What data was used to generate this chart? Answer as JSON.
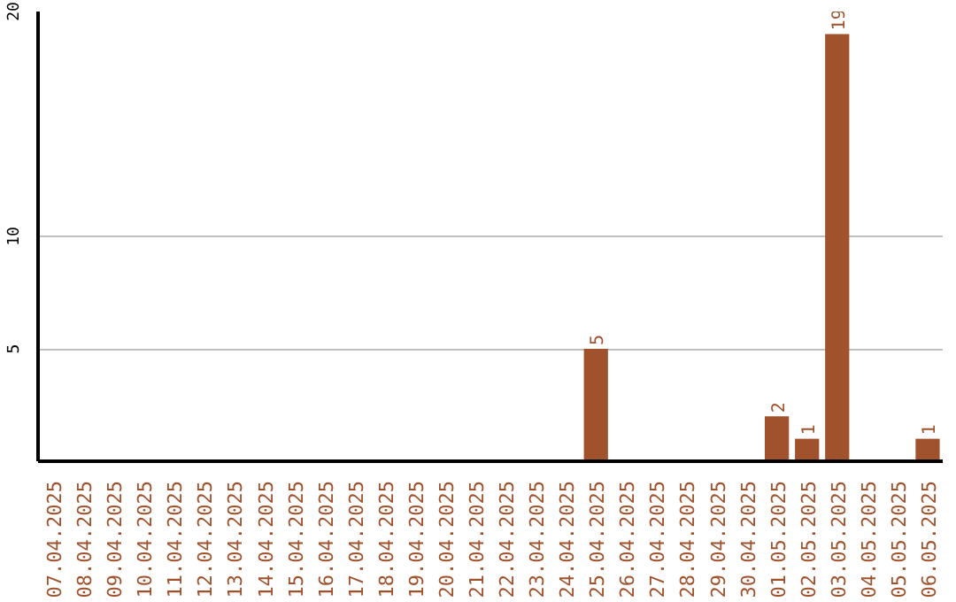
{
  "chart_data": {
    "type": "bar",
    "categories": [
      "07.04.2025",
      "08.04.2025",
      "09.04.2025",
      "10.04.2025",
      "11.04.2025",
      "12.04.2025",
      "13.04.2025",
      "14.04.2025",
      "15.04.2025",
      "16.04.2025",
      "17.04.2025",
      "18.04.2025",
      "19.04.2025",
      "20.04.2025",
      "21.04.2025",
      "22.04.2025",
      "23.04.2025",
      "24.04.2025",
      "25.04.2025",
      "26.04.2025",
      "27.04.2025",
      "28.04.2025",
      "29.04.2025",
      "30.04.2025",
      "01.05.2025",
      "02.05.2025",
      "03.05.2025",
      "04.05.2025",
      "05.05.2025",
      "06.05.2025"
    ],
    "values": [
      0,
      0,
      0,
      0,
      0,
      0,
      0,
      0,
      0,
      0,
      0,
      0,
      0,
      0,
      0,
      0,
      0,
      0,
      5,
      0,
      0,
      0,
      0,
      0,
      2,
      1,
      19,
      0,
      0,
      1
    ],
    "value_labels": [
      null,
      null,
      null,
      null,
      null,
      null,
      null,
      null,
      null,
      null,
      null,
      null,
      null,
      null,
      null,
      null,
      null,
      null,
      "5",
      null,
      null,
      null,
      null,
      null,
      "2",
      "1",
      "19",
      null,
      null,
      "1"
    ],
    "color": "#a0522d",
    "ylim": [
      0,
      20
    ],
    "yticks": [
      5,
      10,
      20
    ],
    "grid": "y"
  }
}
